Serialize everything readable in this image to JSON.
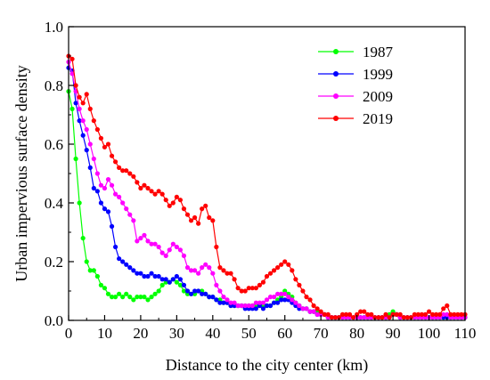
{
  "chart_data": {
    "type": "line",
    "xlabel": "Distance to the city center (km)",
    "ylabel": "Urban impervious surface density",
    "xlim": [
      0,
      110
    ],
    "ylim": [
      0,
      1.0
    ],
    "x_ticks": [
      0,
      10,
      20,
      30,
      40,
      50,
      60,
      70,
      80,
      90,
      100,
      110
    ],
    "y_ticks": [
      0.0,
      0.2,
      0.4,
      0.6,
      0.8,
      1.0
    ],
    "grid": false,
    "legend_position": "top-right",
    "series": [
      {
        "name": "1987",
        "color": "#00ff00",
        "x": [
          0,
          1,
          2,
          3,
          4,
          5,
          6,
          7,
          8,
          9,
          10,
          11,
          12,
          13,
          14,
          15,
          16,
          17,
          18,
          19,
          20,
          21,
          22,
          23,
          24,
          25,
          26,
          27,
          28,
          29,
          30,
          31,
          32,
          33,
          34,
          35,
          36,
          37,
          38,
          39,
          40,
          41,
          42,
          43,
          44,
          45,
          46,
          47,
          48,
          49,
          50,
          51,
          52,
          53,
          54,
          55,
          56,
          57,
          58,
          59,
          60,
          61,
          62,
          63,
          64,
          65,
          66,
          67,
          68,
          69,
          70,
          71,
          72,
          73,
          74,
          75,
          76,
          77,
          78,
          79,
          80,
          81,
          82,
          83,
          84,
          85,
          86,
          87,
          88,
          89,
          90,
          91,
          92,
          93,
          94,
          95,
          96,
          97,
          98,
          99,
          100,
          101,
          102,
          103,
          104,
          105,
          106,
          107,
          108,
          109,
          110
        ],
        "values": [
          0.78,
          0.72,
          0.55,
          0.4,
          0.28,
          0.2,
          0.17,
          0.17,
          0.15,
          0.12,
          0.11,
          0.09,
          0.08,
          0.08,
          0.09,
          0.08,
          0.09,
          0.08,
          0.07,
          0.08,
          0.08,
          0.08,
          0.07,
          0.08,
          0.09,
          0.1,
          0.12,
          0.13,
          0.13,
          0.14,
          0.13,
          0.12,
          0.1,
          0.09,
          0.09,
          0.09,
          0.1,
          0.1,
          0.09,
          0.08,
          0.08,
          0.07,
          0.07,
          0.06,
          0.06,
          0.05,
          0.05,
          0.05,
          0.05,
          0.05,
          0.05,
          0.05,
          0.05,
          0.05,
          0.05,
          0.05,
          0.05,
          0.06,
          0.07,
          0.08,
          0.1,
          0.09,
          0.08,
          0.06,
          0.05,
          0.04,
          0.04,
          0.03,
          0.03,
          0.03,
          0.02,
          0.02,
          0.01,
          0.01,
          0.01,
          0.01,
          0.01,
          0.01,
          0.01,
          0.01,
          0.01,
          0.01,
          0.01,
          0.01,
          0.01,
          0.01,
          0.01,
          0.01,
          0.01,
          0.02,
          0.03,
          0.02,
          0.01,
          0.01,
          0.01,
          0.01,
          0.01,
          0.01,
          0.01,
          0.01,
          0.01,
          0.01,
          0.01,
          0.01,
          0.01,
          0.01,
          0.01,
          0.01,
          0.01,
          0.01,
          0.01
        ]
      },
      {
        "name": "1999",
        "color": "#0000ff",
        "x": [
          0,
          1,
          2,
          3,
          4,
          5,
          6,
          7,
          8,
          9,
          10,
          11,
          12,
          13,
          14,
          15,
          16,
          17,
          18,
          19,
          20,
          21,
          22,
          23,
          24,
          25,
          26,
          27,
          28,
          29,
          30,
          31,
          32,
          33,
          34,
          35,
          36,
          37,
          38,
          39,
          40,
          41,
          42,
          43,
          44,
          45,
          46,
          47,
          48,
          49,
          50,
          51,
          52,
          53,
          54,
          55,
          56,
          57,
          58,
          59,
          60,
          61,
          62,
          63,
          64,
          65,
          66,
          67,
          68,
          69,
          70,
          71,
          72,
          73,
          74,
          75,
          76,
          77,
          78,
          79,
          80,
          81,
          82,
          83,
          84,
          85,
          86,
          87,
          88,
          89,
          90,
          91,
          92,
          93,
          94,
          95,
          96,
          97,
          98,
          99,
          100,
          101,
          102,
          103,
          104,
          105,
          106,
          107,
          108,
          109,
          110
        ],
        "values": [
          0.86,
          0.85,
          0.74,
          0.68,
          0.63,
          0.58,
          0.52,
          0.45,
          0.44,
          0.4,
          0.38,
          0.37,
          0.32,
          0.25,
          0.21,
          0.2,
          0.19,
          0.18,
          0.17,
          0.16,
          0.16,
          0.15,
          0.15,
          0.16,
          0.15,
          0.15,
          0.14,
          0.14,
          0.13,
          0.14,
          0.15,
          0.14,
          0.12,
          0.1,
          0.09,
          0.1,
          0.1,
          0.09,
          0.09,
          0.08,
          0.08,
          0.07,
          0.06,
          0.06,
          0.06,
          0.05,
          0.05,
          0.05,
          0.05,
          0.04,
          0.04,
          0.04,
          0.04,
          0.05,
          0.04,
          0.05,
          0.05,
          0.06,
          0.06,
          0.07,
          0.07,
          0.07,
          0.06,
          0.05,
          0.04,
          0.04,
          0.04,
          0.03,
          0.03,
          0.02,
          0.02,
          0.02,
          0.01,
          0.01,
          0.01,
          0.01,
          0.01,
          0.01,
          0.01,
          0.01,
          0.01,
          0.01,
          0.01,
          0.01,
          0.01,
          0.01,
          0.01,
          0.01,
          0.01,
          0.01,
          0.02,
          0.02,
          0.01,
          0.01,
          0.01,
          0.01,
          0.01,
          0.01,
          0.01,
          0.01,
          0.01,
          0.01,
          0.01,
          0.01,
          0.01,
          0.01,
          0.01,
          0.01,
          0.01,
          0.01,
          0.01
        ]
      },
      {
        "name": "2009",
        "color": "#ff00ff",
        "x": [
          0,
          1,
          2,
          3,
          4,
          5,
          6,
          7,
          8,
          9,
          10,
          11,
          12,
          13,
          14,
          15,
          16,
          17,
          18,
          19,
          20,
          21,
          22,
          23,
          24,
          25,
          26,
          27,
          28,
          29,
          30,
          31,
          32,
          33,
          34,
          35,
          36,
          37,
          38,
          39,
          40,
          41,
          42,
          43,
          44,
          45,
          46,
          47,
          48,
          49,
          50,
          51,
          52,
          53,
          54,
          55,
          56,
          57,
          58,
          59,
          60,
          61,
          62,
          63,
          64,
          65,
          66,
          67,
          68,
          69,
          70,
          71,
          72,
          73,
          74,
          75,
          76,
          77,
          78,
          79,
          80,
          81,
          82,
          83,
          84,
          85,
          86,
          87,
          88,
          89,
          90,
          91,
          92,
          93,
          94,
          95,
          96,
          97,
          98,
          99,
          100,
          101,
          102,
          103,
          104,
          105,
          106,
          107,
          108,
          109,
          110
        ],
        "values": [
          0.88,
          0.84,
          0.78,
          0.72,
          0.68,
          0.65,
          0.6,
          0.55,
          0.5,
          0.46,
          0.45,
          0.48,
          0.46,
          0.43,
          0.42,
          0.4,
          0.38,
          0.36,
          0.34,
          0.27,
          0.28,
          0.29,
          0.27,
          0.26,
          0.26,
          0.25,
          0.23,
          0.22,
          0.24,
          0.26,
          0.25,
          0.24,
          0.22,
          0.18,
          0.17,
          0.17,
          0.16,
          0.18,
          0.19,
          0.18,
          0.16,
          0.12,
          0.1,
          0.08,
          0.07,
          0.06,
          0.06,
          0.05,
          0.05,
          0.05,
          0.05,
          0.05,
          0.06,
          0.06,
          0.06,
          0.07,
          0.08,
          0.08,
          0.09,
          0.09,
          0.09,
          0.08,
          0.07,
          0.06,
          0.05,
          0.04,
          0.04,
          0.03,
          0.03,
          0.02,
          0.02,
          0.02,
          0.01,
          0.01,
          0.01,
          0.01,
          0.01,
          0.01,
          0.01,
          0.01,
          0.01,
          0.01,
          0.01,
          0.01,
          0.01,
          0.01,
          0.01,
          0.01,
          0.01,
          0.01,
          0.02,
          0.02,
          0.01,
          0.01,
          0.01,
          0.01,
          0.01,
          0.01,
          0.01,
          0.01,
          0.01,
          0.01,
          0.01,
          0.01,
          0.02,
          0.02,
          0.01,
          0.01,
          0.01,
          0.01,
          0.01
        ]
      },
      {
        "name": "2019",
        "color": "#ff0000",
        "x": [
          0,
          1,
          2,
          3,
          4,
          5,
          6,
          7,
          8,
          9,
          10,
          11,
          12,
          13,
          14,
          15,
          16,
          17,
          18,
          19,
          20,
          21,
          22,
          23,
          24,
          25,
          26,
          27,
          28,
          29,
          30,
          31,
          32,
          33,
          34,
          35,
          36,
          37,
          38,
          39,
          40,
          41,
          42,
          43,
          44,
          45,
          46,
          47,
          48,
          49,
          50,
          51,
          52,
          53,
          54,
          55,
          56,
          57,
          58,
          59,
          60,
          61,
          62,
          63,
          64,
          65,
          66,
          67,
          68,
          69,
          70,
          71,
          72,
          73,
          74,
          75,
          76,
          77,
          78,
          79,
          80,
          81,
          82,
          83,
          84,
          85,
          86,
          87,
          88,
          89,
          90,
          91,
          92,
          93,
          94,
          95,
          96,
          97,
          98,
          99,
          100,
          101,
          102,
          103,
          104,
          105,
          106,
          107,
          108,
          109,
          110
        ],
        "values": [
          0.9,
          0.89,
          0.8,
          0.76,
          0.74,
          0.77,
          0.72,
          0.68,
          0.65,
          0.62,
          0.59,
          0.6,
          0.56,
          0.54,
          0.52,
          0.51,
          0.51,
          0.5,
          0.49,
          0.47,
          0.45,
          0.46,
          0.45,
          0.44,
          0.43,
          0.44,
          0.43,
          0.41,
          0.39,
          0.4,
          0.42,
          0.41,
          0.38,
          0.36,
          0.34,
          0.35,
          0.33,
          0.38,
          0.39,
          0.35,
          0.34,
          0.25,
          0.18,
          0.17,
          0.16,
          0.16,
          0.14,
          0.11,
          0.1,
          0.1,
          0.11,
          0.11,
          0.11,
          0.12,
          0.13,
          0.15,
          0.16,
          0.17,
          0.18,
          0.19,
          0.2,
          0.19,
          0.17,
          0.14,
          0.12,
          0.1,
          0.08,
          0.07,
          0.05,
          0.04,
          0.03,
          0.02,
          0.02,
          0.01,
          0.01,
          0.01,
          0.02,
          0.02,
          0.02,
          0.01,
          0.02,
          0.03,
          0.03,
          0.02,
          0.02,
          0.01,
          0.01,
          0.01,
          0.02,
          0.01,
          0.02,
          0.02,
          0.02,
          0.01,
          0.01,
          0.01,
          0.02,
          0.02,
          0.02,
          0.02,
          0.03,
          0.02,
          0.02,
          0.02,
          0.04,
          0.05,
          0.02,
          0.02,
          0.02,
          0.02,
          0.02
        ]
      }
    ]
  }
}
